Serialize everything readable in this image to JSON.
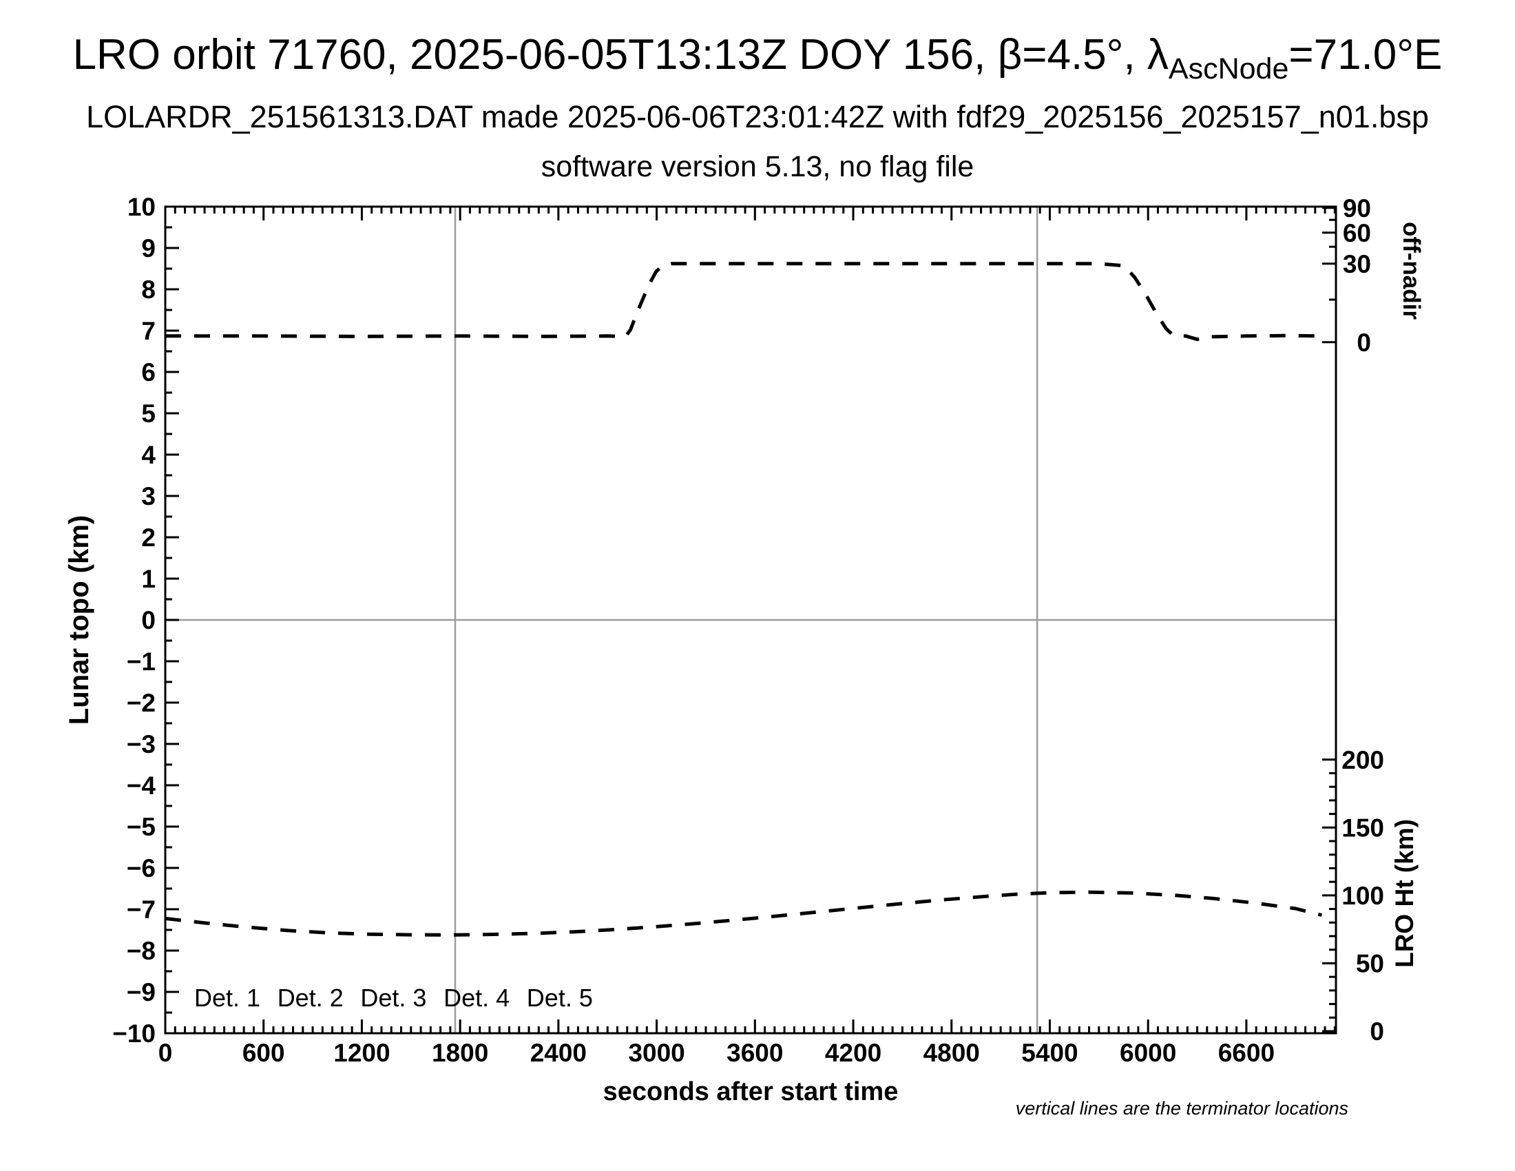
{
  "header": {
    "title": {
      "prefix": "LRO orbit 71760, 2025-06-05T13:13Z DOY 156, β=4.5°, λ",
      "subscript": "AscNode",
      "suffix": "=71.0°E"
    },
    "subtitle": "LOLARDR_251561313.DAT made 2025-06-06T23:01:42Z with fdf29_2025156_2025157_n01.bsp",
    "version_line": "software version 5.13, no flag file"
  },
  "note": "vertical lines are the terminator locations",
  "legend": {
    "items": [
      {
        "label": "Det. 1",
        "color": "#000000"
      },
      {
        "label": "Det. 2",
        "color": "#0000ff"
      },
      {
        "label": "Det. 3",
        "color": "#00cc00"
      },
      {
        "label": "Det. 4",
        "color": "#ffa500"
      },
      {
        "label": "Det. 5",
        "color": "#ff0000"
      }
    ]
  },
  "chart_data": {
    "type": "line",
    "x_axis": {
      "label": "seconds after start time",
      "range": [
        0,
        7147
      ],
      "major_tick": 600,
      "minor_tick": 60,
      "last_label": 6600
    },
    "y_left_axis": {
      "label": "Lunar topo (km)",
      "range": [
        -10,
        10
      ],
      "major_tick": 1,
      "minor_tick": 0.5
    },
    "y_right_top_axis": {
      "label": "off-nadir",
      "major_ticks": [
        {
          "value": 90,
          "topo": 9.97
        },
        {
          "value": 60,
          "topo": 9.37
        },
        {
          "value": 30,
          "topo": 8.62
        },
        {
          "value": 0,
          "topo": 6.72
        }
      ],
      "minor_ticks_topo": [
        9.68,
        9.03,
        7.75
      ]
    },
    "y_right_bottom_axis": {
      "label": "LRO Ht (km)",
      "range_km": [
        0,
        200
      ],
      "major_tick_km": 50,
      "minor_tick_km": 10,
      "km_to_topo": {
        "topo_at_0km": -9.95,
        "topo_per_km": 0.03285
      }
    },
    "zero_line_topo": 0,
    "terminator_lines_s": [
      1770,
      5323
    ],
    "series": [
      {
        "name": "off-nadir angle",
        "axis": "topo",
        "color": "#000000",
        "dashed": true,
        "points": [
          [
            0,
            6.87
          ],
          [
            600,
            6.87
          ],
          [
            1200,
            6.86
          ],
          [
            1800,
            6.87
          ],
          [
            2300,
            6.86
          ],
          [
            2700,
            6.87
          ],
          [
            2810,
            6.86
          ],
          [
            2840,
            7.02
          ],
          [
            2870,
            7.33
          ],
          [
            2900,
            7.62
          ],
          [
            2930,
            7.9
          ],
          [
            2960,
            8.16
          ],
          [
            2995,
            8.42
          ],
          [
            3035,
            8.57
          ],
          [
            3090,
            8.62
          ],
          [
            3600,
            8.62
          ],
          [
            4200,
            8.62
          ],
          [
            4800,
            8.62
          ],
          [
            5300,
            8.62
          ],
          [
            5700,
            8.62
          ],
          [
            5855,
            8.57
          ],
          [
            5920,
            8.28
          ],
          [
            5985,
            7.88
          ],
          [
            6050,
            7.42
          ],
          [
            6110,
            7.05
          ],
          [
            6155,
            6.88
          ],
          [
            6230,
            6.87
          ],
          [
            6300,
            6.79
          ],
          [
            6360,
            6.85
          ],
          [
            6600,
            6.87
          ],
          [
            6850,
            6.88
          ],
          [
            7060,
            6.87
          ]
        ]
      },
      {
        "name": "LRO height",
        "axis": "ht_km",
        "color": "#000000",
        "dashed": true,
        "points": [
          [
            0,
            83.0
          ],
          [
            250,
            79.6
          ],
          [
            500,
            76.6
          ],
          [
            750,
            74.1
          ],
          [
            1000,
            72.4
          ],
          [
            1250,
            71.4
          ],
          [
            1500,
            71.0
          ],
          [
            1770,
            70.9
          ],
          [
            2000,
            71.3
          ],
          [
            2250,
            72.0
          ],
          [
            2500,
            73.2
          ],
          [
            2750,
            74.9
          ],
          [
            3000,
            77.0
          ],
          [
            3250,
            79.4
          ],
          [
            3500,
            82.1
          ],
          [
            3750,
            85.0
          ],
          [
            4000,
            88.0
          ],
          [
            4250,
            91.0
          ],
          [
            4500,
            94.0
          ],
          [
            4750,
            96.8
          ],
          [
            5000,
            99.2
          ],
          [
            5200,
            100.9
          ],
          [
            5400,
            102.0
          ],
          [
            5650,
            102.4
          ],
          [
            5900,
            101.8
          ],
          [
            6150,
            100.2
          ],
          [
            6400,
            97.7
          ],
          [
            6650,
            94.4
          ],
          [
            6900,
            90.3
          ],
          [
            7060,
            85.5
          ]
        ]
      }
    ]
  }
}
